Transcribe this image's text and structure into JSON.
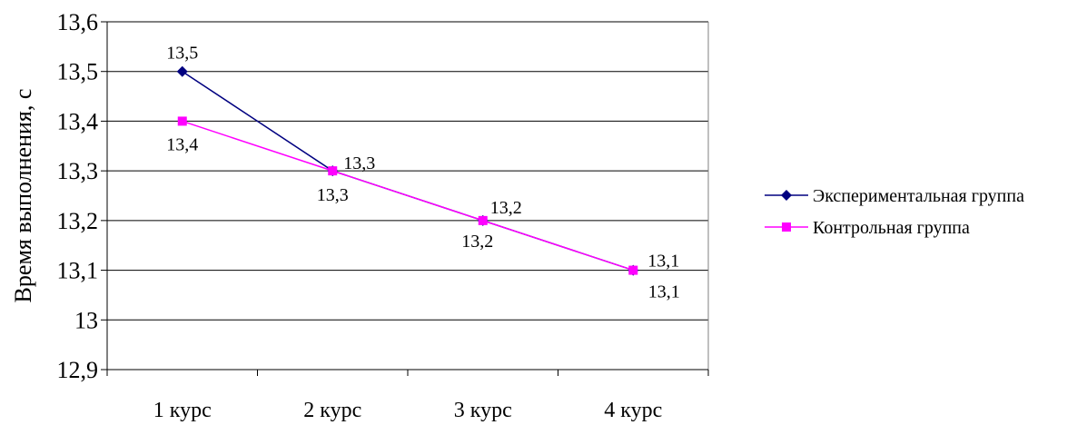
{
  "chart_data": {
    "type": "line",
    "categories": [
      "1 курс",
      "2 курс",
      "3 курс",
      "4 курс"
    ],
    "ylabel": "Время выполнения, с",
    "xlabel": "",
    "ylim": [
      12.9,
      13.6
    ],
    "ytick_step": 0.1,
    "yticks": [
      "12,9",
      "13",
      "13,1",
      "13,2",
      "13,3",
      "13,4",
      "13,5",
      "13,6"
    ],
    "grid": true,
    "legend_position": "right",
    "series": [
      {
        "name": "Экспериментальная группа",
        "values": [
          13.5,
          13.3,
          13.2,
          13.1
        ],
        "labels": [
          "13,5",
          "13,3",
          "13,2",
          "13,1"
        ],
        "color": "#000080",
        "marker": "diamond"
      },
      {
        "name": "Контрольная группа",
        "values": [
          13.4,
          13.3,
          13.2,
          13.1
        ],
        "labels": [
          "13,4",
          "13,3",
          "13,2",
          "13,1"
        ],
        "color": "#ff00ff",
        "marker": "square"
      }
    ]
  }
}
